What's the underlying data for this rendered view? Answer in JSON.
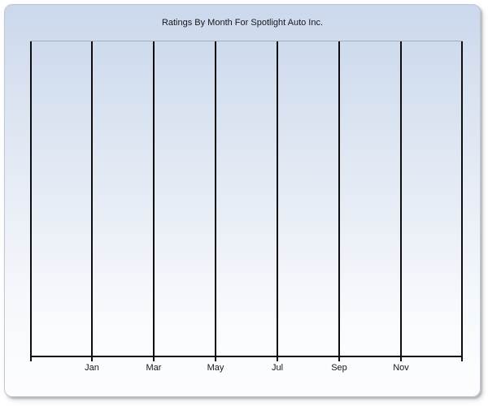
{
  "chart": {
    "title": "Ratings By Month For Spotlight Auto Inc.",
    "x_labels": [
      "Jan",
      "Mar",
      "May",
      "Jul",
      "Sep",
      "Nov"
    ],
    "gridline_count": 8
  },
  "chart_data": {
    "type": "line",
    "title": "Ratings By Month For Spotlight Auto Inc.",
    "categories": [
      "Jan",
      "Mar",
      "May",
      "Jul",
      "Sep",
      "Nov"
    ],
    "series": [],
    "xlabel": "",
    "ylabel": "",
    "y_tick_labels": [],
    "grid": "vertical gridlines only",
    "legend_position": "none",
    "plot_empty": true
  },
  "colors": {
    "panel_gradient_top": "#cbd8ec",
    "panel_gradient_bottom": "#fdfdfe",
    "panel_border": "#bec7d4",
    "plot_gradient_top": "#cedbee",
    "plot_gradient_bottom": "#fcfdfe",
    "plot_top_border": "#a5adba",
    "gridline": "#0d0d0f",
    "text": "#17171b",
    "page_background": "#ffffff"
  }
}
